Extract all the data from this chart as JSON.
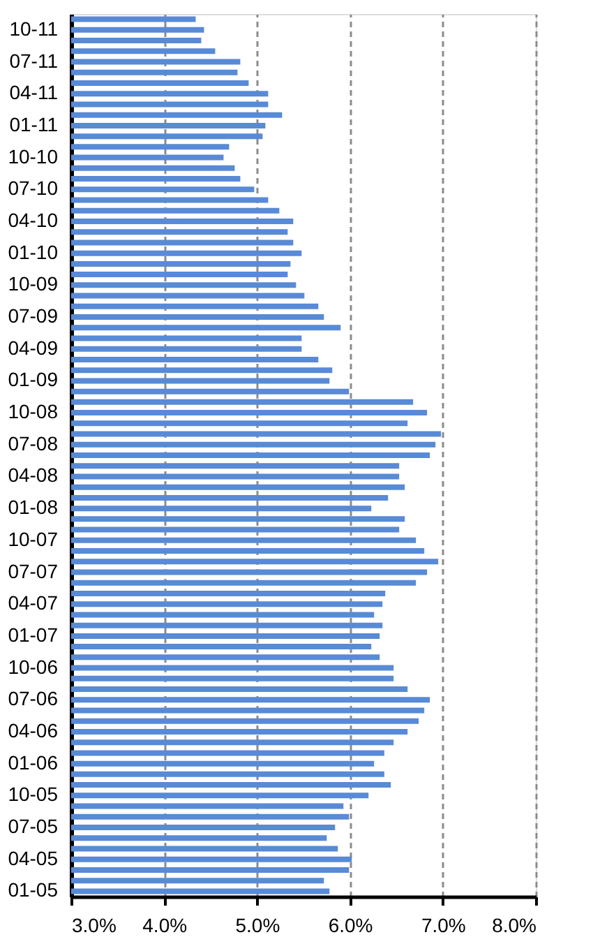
{
  "chart_data": {
    "type": "bar",
    "orientation": "horizontal",
    "categories": [
      null,
      "10-11",
      null,
      null,
      "07-11",
      null,
      null,
      "04-11",
      null,
      null,
      "01-11",
      null,
      null,
      "10-10",
      null,
      null,
      "07-10",
      null,
      null,
      "04-10",
      null,
      null,
      "01-10",
      null,
      null,
      "10-09",
      null,
      null,
      "07-09",
      null,
      null,
      "04-09",
      null,
      null,
      "01-09",
      null,
      null,
      "10-08",
      null,
      null,
      "07-08",
      null,
      null,
      "04-08",
      null,
      null,
      "01-08",
      null,
      null,
      "10-07",
      null,
      null,
      "07-07",
      null,
      null,
      "04-07",
      null,
      null,
      "01-07",
      null,
      null,
      "10-06",
      null,
      null,
      "07-06",
      null,
      null,
      "04-06",
      null,
      null,
      "01-06",
      null,
      null,
      "10-05",
      null,
      null,
      "07-05",
      null,
      null,
      "04-05",
      null,
      null,
      "01-05"
    ],
    "values": [
      4.34,
      4.43,
      4.4,
      4.55,
      4.82,
      4.79,
      4.91,
      5.12,
      5.12,
      5.27,
      5.09,
      5.06,
      4.7,
      4.64,
      4.76,
      4.82,
      4.97,
      5.12,
      5.24,
      5.39,
      5.33,
      5.39,
      5.48,
      5.36,
      5.33,
      5.42,
      5.51,
      5.66,
      5.72,
      5.9,
      5.48,
      5.48,
      5.66,
      5.81,
      5.78,
      5.99,
      6.68,
      6.83,
      6.62,
      6.98,
      6.92,
      6.86,
      6.53,
      6.53,
      6.59,
      6.41,
      6.23,
      6.59,
      6.53,
      6.71,
      6.8,
      6.95,
      6.83,
      6.71,
      6.38,
      6.35,
      6.26,
      6.35,
      6.32,
      6.23,
      6.32,
      6.47,
      6.47,
      6.62,
      6.86,
      6.8,
      6.74,
      6.62,
      6.47,
      6.37,
      6.26,
      6.37,
      6.44,
      6.2,
      5.93,
      5.99,
      5.84,
      5.75,
      5.87,
      6.02,
      5.99,
      5.72,
      5.78
    ],
    "color": "#588ad6",
    "xlim": [
      3,
      8
    ],
    "xticks": [
      {
        "value": 3,
        "label": "3.0%"
      },
      {
        "value": 4,
        "label": "4.0%"
      },
      {
        "value": 5,
        "label": "5.0%"
      },
      {
        "value": 6,
        "label": "6.0%"
      },
      {
        "value": 7,
        "label": "7.0%"
      },
      {
        "value": 8,
        "label": "8.0%"
      }
    ],
    "grid": "x"
  }
}
